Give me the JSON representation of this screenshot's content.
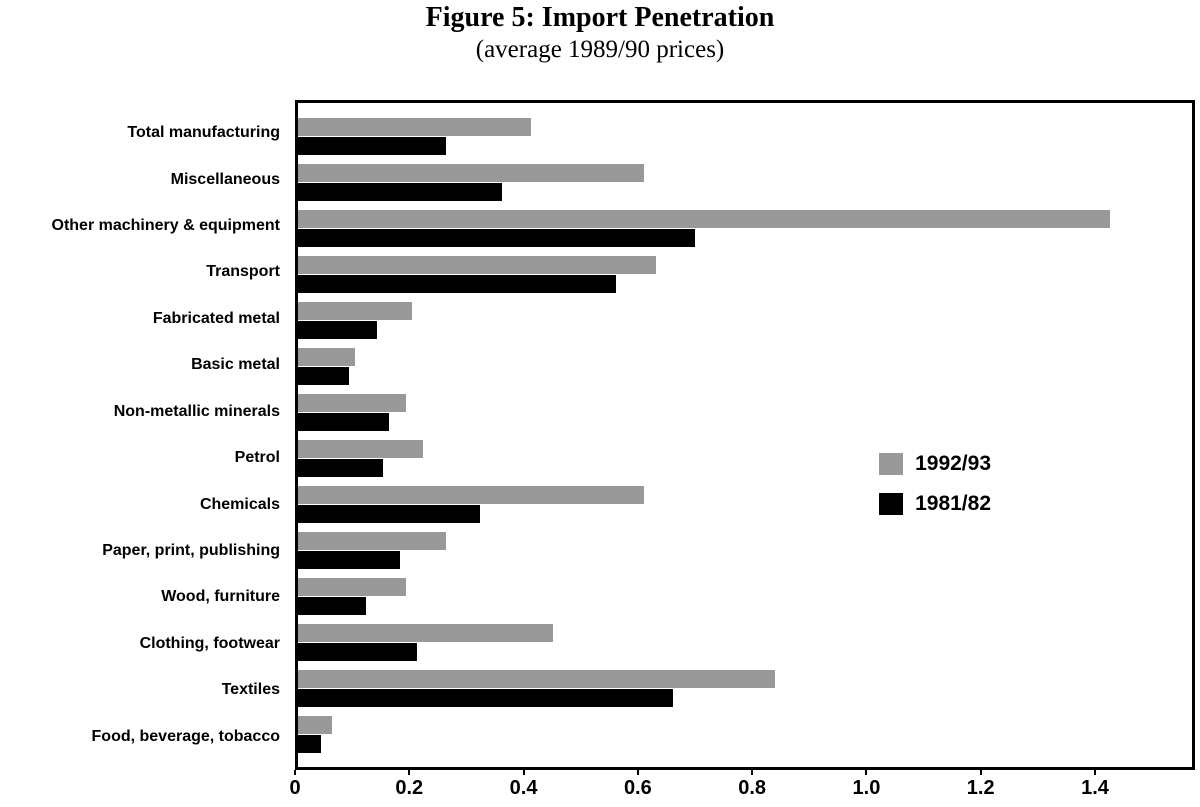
{
  "title": "Figure 5: Import Penetration",
  "subtitle": "(average 1989/90 prices)",
  "chart_data": {
    "type": "bar",
    "orientation": "horizontal",
    "title": "Figure 5: Import Penetration",
    "subtitle": "(average 1989/90 prices)",
    "categories": [
      "Total manufacturing",
      "Miscellaneous",
      "Other machinery & equipment",
      "Transport",
      "Fabricated metal",
      "Basic metal",
      "Non-metallic minerals",
      "Petrol",
      "Chemicals",
      "Paper, print, publishing",
      "Wood, furniture",
      "Clothing, footwear",
      "Textiles",
      "Food, beverage, tobacco"
    ],
    "series": [
      {
        "name": "1992/93",
        "color": "#999999",
        "values": [
          0.41,
          0.61,
          1.43,
          0.63,
          0.2,
          0.1,
          0.19,
          0.22,
          0.61,
          0.26,
          0.19,
          0.45,
          0.84,
          0.06
        ]
      },
      {
        "name": "1981/82",
        "color": "#000000",
        "values": [
          0.26,
          0.36,
          0.7,
          0.56,
          0.14,
          0.09,
          0.16,
          0.15,
          0.32,
          0.18,
          0.12,
          0.21,
          0.66,
          0.04
        ]
      }
    ],
    "x_ticks": [
      "0",
      "0.2",
      "0.4",
      "0.6",
      "0.8",
      "1.0",
      "1.2",
      "1.4"
    ],
    "x_tick_values": [
      0,
      0.2,
      0.4,
      0.6,
      0.8,
      1.0,
      1.2,
      1.4
    ],
    "xlim": [
      0,
      1.575
    ],
    "grid": false,
    "legend_position": "inside-right"
  }
}
